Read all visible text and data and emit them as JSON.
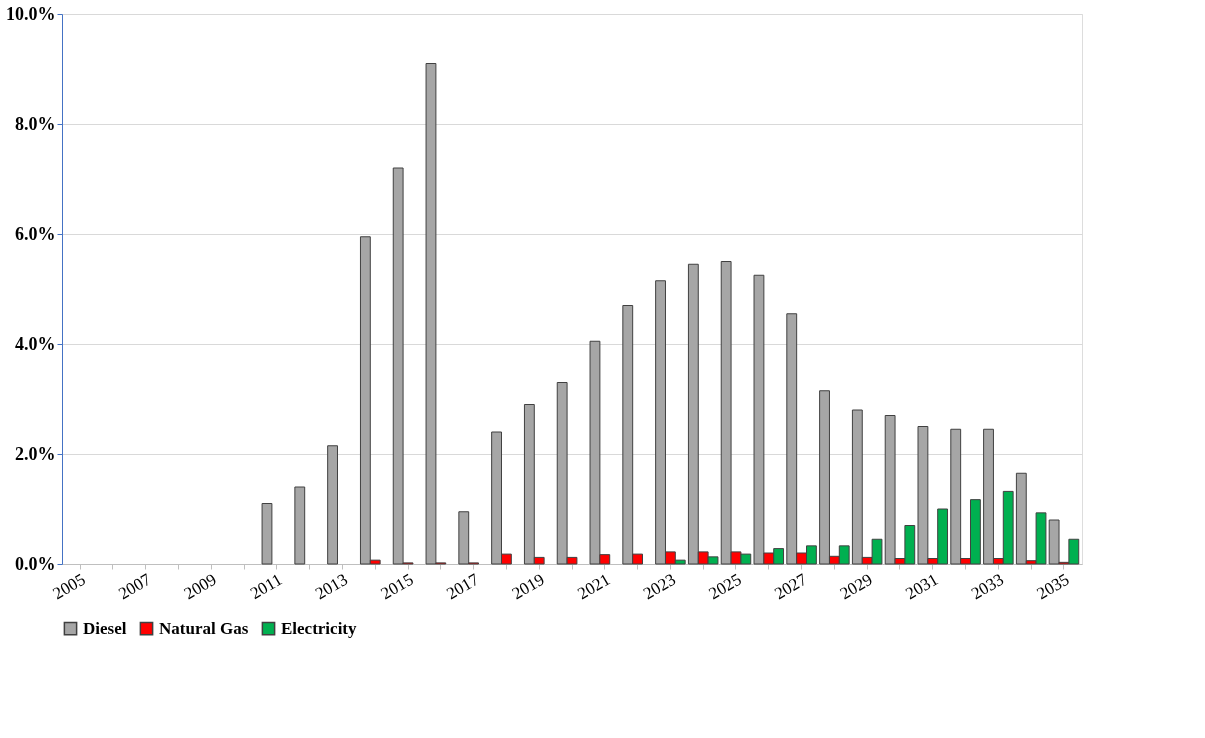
{
  "chart_data": {
    "type": "bar",
    "categories": [
      "2005",
      null,
      "2007",
      null,
      "2009",
      null,
      "2011",
      null,
      "2013",
      null,
      "2015",
      null,
      "2017",
      null,
      "2019",
      null,
      "2021",
      null,
      "2023",
      null,
      "2025",
      null,
      "2027",
      null,
      "2029",
      null,
      "2031",
      null,
      "2033",
      null,
      "2035"
    ],
    "series": [
      {
        "name": "Diesel",
        "color": "#a6a6a6",
        "values": [
          null,
          null,
          null,
          null,
          null,
          null,
          1.1,
          1.4,
          2.15,
          5.95,
          7.2,
          9.1,
          0.95,
          2.4,
          2.9,
          3.3,
          4.05,
          4.7,
          5.15,
          5.45,
          5.5,
          5.25,
          4.55,
          3.15,
          2.8,
          2.7,
          2.5,
          2.45,
          2.45,
          1.65,
          0.8
        ]
      },
      {
        "name": "Natural Gas",
        "color": "#ff0000",
        "values": [
          null,
          null,
          null,
          null,
          null,
          null,
          null,
          null,
          null,
          0.07,
          0.02,
          0.02,
          0.02,
          0.18,
          0.12,
          0.12,
          0.17,
          0.18,
          0.22,
          0.22,
          0.22,
          0.2,
          0.2,
          0.14,
          0.12,
          0.1,
          0.1,
          0.1,
          0.1,
          0.06,
          0.03
        ]
      },
      {
        "name": "Electricity",
        "color": "#00b050",
        "values": [
          null,
          null,
          null,
          null,
          null,
          null,
          null,
          null,
          null,
          null,
          null,
          null,
          null,
          null,
          null,
          null,
          null,
          null,
          0.07,
          0.13,
          0.18,
          0.28,
          0.33,
          0.33,
          0.45,
          0.7,
          1.0,
          1.17,
          1.32,
          0.93,
          0.45
        ]
      }
    ],
    "ylim": [
      0,
      10
    ],
    "yticks": [
      {
        "value": 0,
        "label": "0.0%"
      },
      {
        "value": 2,
        "label": "2.0%"
      },
      {
        "value": 4,
        "label": "4.0%"
      },
      {
        "value": 6,
        "label": "6.0%"
      },
      {
        "value": 8,
        "label": "8.0%"
      },
      {
        "value": 10,
        "label": "10.0%"
      }
    ],
    "grid": "y",
    "legend": "bottom"
  }
}
